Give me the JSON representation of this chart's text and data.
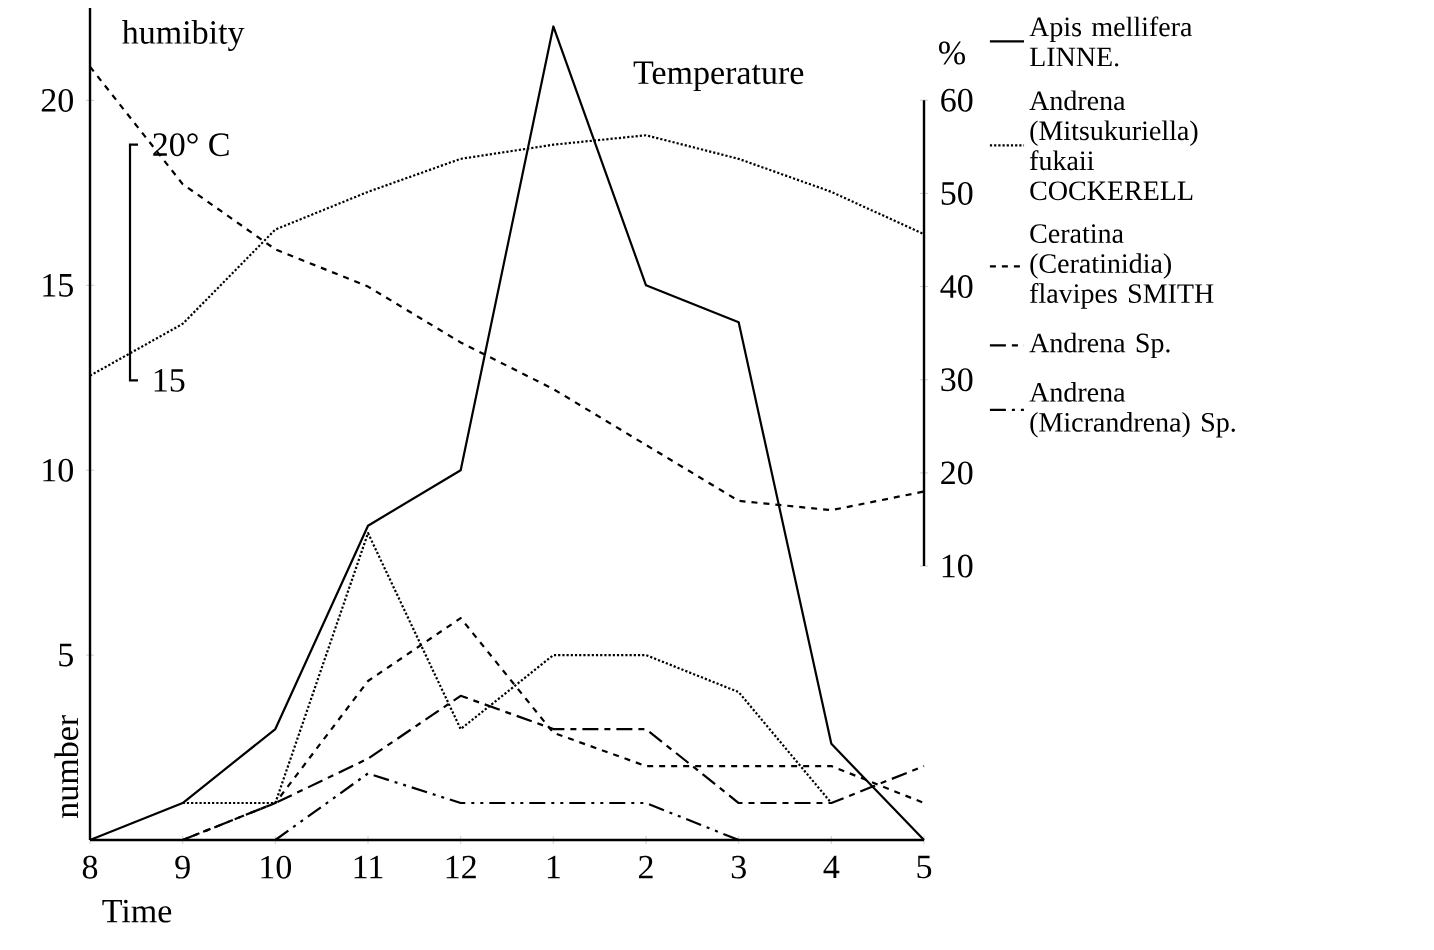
{
  "chart_data": {
    "type": "line",
    "xlabel": "Time",
    "ylabel": "number",
    "y2label": "%",
    "categories": [
      "8",
      "9",
      "10",
      "11",
      "12",
      "1",
      "2",
      "3",
      "4",
      "5"
    ],
    "ylim": [
      0,
      22.5
    ],
    "yticks": [
      5,
      10,
      15,
      20
    ],
    "y2lim": [
      -19.4,
      69.9
    ],
    "y2ticks": [
      10,
      20,
      30,
      40,
      50,
      60
    ],
    "y3lim": [
      5.25,
      22.9
    ],
    "y3ticks": [
      15,
      {
        "value": 20,
        "label": "20° C"
      }
    ],
    "legend": "right",
    "series": [
      {
        "name": "Apis mellifera LINNE.",
        "color": "#000000",
        "line_style": "solid",
        "values": [
          0,
          1,
          3,
          8.5,
          10,
          22,
          15,
          14,
          2.6,
          0
        ]
      },
      {
        "name": "Andrena (Mitsukuriella) fukaii COCKERELL",
        "color": "#000000",
        "line_style": "dotted",
        "values": [
          null,
          1,
          1,
          8.3,
          3,
          5,
          5,
          4,
          1,
          null
        ]
      },
      {
        "name": "Ceratina (Ceratinidia) flavipes SMITH",
        "color": "#000000",
        "line_style": "dashed",
        "values": [
          null,
          0,
          1,
          4.3,
          6,
          2.9,
          2,
          2,
          2,
          1
        ]
      },
      {
        "name": "Andrena Sp.",
        "color": "#000000",
        "line_style": "dashdot",
        "values": [
          null,
          0,
          1,
          2.2,
          3.9,
          3,
          3,
          1,
          1,
          2
        ]
      },
      {
        "name": "Andrena (Micrandrena) Sp.",
        "color": "#000000",
        "line_style": "dashdotdot",
        "values": [
          null,
          null,
          0,
          1.8,
          1,
          1,
          1,
          0,
          0,
          0
        ]
      },
      {
        "name": "humibity",
        "color": "#000000",
        "line_style": "dashed",
        "axis": "y2",
        "values": [
          63.6,
          51,
          44,
          40,
          34,
          29,
          23,
          17,
          16,
          18
        ]
      },
      {
        "name": "Temperature",
        "color": "#000000",
        "line_style": "dotted",
        "axis": "y3",
        "values": [
          15.1,
          16.2,
          18.2,
          19.0,
          19.7,
          20.0,
          20.2,
          19.7,
          19.0,
          18.1
        ]
      }
    ]
  }
}
